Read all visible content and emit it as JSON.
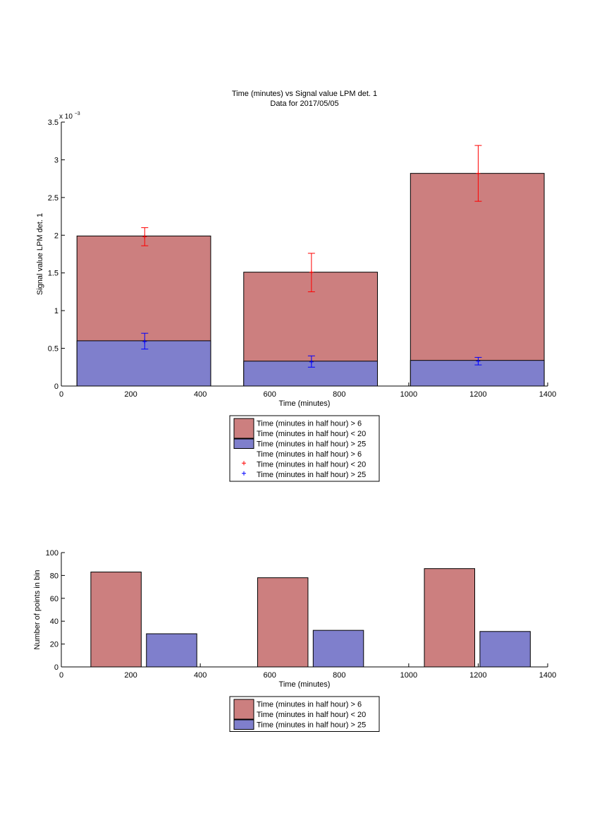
{
  "chart_data": [
    {
      "type": "bar",
      "title": "Time (minutes) vs Signal value LPM det. 1",
      "subtitle": "Data for 2017/05/05",
      "xlabel": "Time (minutes)",
      "ylabel": "Signal value LPM det. 1",
      "exponent_label": "x 10",
      "exponent_power": "−3",
      "xlim": [
        0,
        1400
      ],
      "ylim": [
        0,
        3.5
      ],
      "xticks": [
        0,
        200,
        400,
        600,
        800,
        1000,
        1200,
        1400
      ],
      "xtick_labels": [
        "0",
        "200",
        "400",
        "600",
        "800",
        "1000",
        "1200",
        "1400"
      ],
      "yticks": [
        0,
        0.5,
        1,
        1.5,
        2,
        2.5,
        3,
        3.5
      ],
      "ytick_labels": [
        "0",
        "0.5",
        "1",
        "1.5",
        "2",
        "2.5",
        "3",
        "3.5"
      ],
      "bar_ranges": [
        [
          45,
          430
        ],
        [
          525,
          910
        ],
        [
          1005,
          1390
        ]
      ],
      "series": [
        {
          "name": "Time (minutes in half hour) > 6 Time (minutes in half hour) < 20",
          "kind": "bar",
          "color": "#cc7f7f",
          "values": [
            1.99,
            1.51,
            2.82
          ]
        },
        {
          "name": "Time (minutes in half hour) > 25",
          "kind": "bar",
          "color": "#7f7fcc",
          "values": [
            0.6,
            0.33,
            0.34
          ]
        },
        {
          "name": "Time (minutes in half hour) > 6 Time (minutes in half hour) < 20",
          "kind": "errorbar",
          "color": "#ff0000",
          "x": [
            240,
            720,
            1200
          ],
          "y": [
            1.98,
            1.51,
            2.82
          ],
          "low": [
            1.86,
            1.25,
            2.45
          ],
          "high": [
            2.1,
            1.76,
            3.19
          ]
        },
        {
          "name": "Time (minutes in half hour) > 25",
          "kind": "errorbar",
          "color": "#0000ff",
          "x": [
            240,
            720,
            1200
          ],
          "y": [
            0.59,
            0.32,
            0.33
          ],
          "low": [
            0.49,
            0.25,
            0.28
          ],
          "high": [
            0.7,
            0.4,
            0.38
          ]
        }
      ],
      "legend": {
        "position": "below",
        "entries": [
          {
            "marker": "patch",
            "color": "#cc7f7f",
            "lines": [
              "Time (minutes in half hour) > 6",
              "Time (minutes in half hour) < 20"
            ]
          },
          {
            "marker": "patch",
            "color": "#7f7fcc",
            "lines": [
              "Time (minutes in half hour) > 25"
            ]
          },
          {
            "marker": "plus",
            "color": "#ff0000",
            "lines": [
              "Time (minutes in half hour) > 6",
              "Time (minutes in half hour) < 20"
            ]
          },
          {
            "marker": "plus",
            "color": "#0000ff",
            "lines": [
              "Time (minutes in half hour) > 25"
            ]
          }
        ]
      }
    },
    {
      "type": "bar",
      "title": "",
      "xlabel": "Time (minutes)",
      "ylabel": "Number of points in bin",
      "xlim": [
        0,
        1400
      ],
      "ylim": [
        0,
        100
      ],
      "xticks": [
        0,
        200,
        400,
        600,
        800,
        1000,
        1200,
        1400
      ],
      "xtick_labels": [
        "0",
        "200",
        "400",
        "600",
        "800",
        "1000",
        "1200",
        "1400"
      ],
      "yticks": [
        0,
        20,
        40,
        60,
        80,
        100
      ],
      "ytick_labels": [
        "0",
        "20",
        "40",
        "60",
        "80",
        "100"
      ],
      "series": [
        {
          "name": "Time (minutes in half hour) > 6 Time (minutes in half hour) < 20",
          "kind": "bar",
          "color": "#cc7f7f",
          "ranges": [
            [
              85,
              230
            ],
            [
              565,
              710
            ],
            [
              1045,
              1190
            ]
          ],
          "values": [
            83,
            78,
            86
          ]
        },
        {
          "name": "Time (minutes in half hour) > 25",
          "kind": "bar",
          "color": "#7f7fcc",
          "ranges": [
            [
              245,
              390
            ],
            [
              725,
              870
            ],
            [
              1205,
              1350
            ]
          ],
          "values": [
            29,
            32,
            31
          ]
        }
      ],
      "legend": {
        "position": "below",
        "entries": [
          {
            "marker": "patch",
            "color": "#cc7f7f",
            "lines": [
              "Time (minutes in half hour) > 6",
              "Time (minutes in half hour) < 20"
            ]
          },
          {
            "marker": "patch",
            "color": "#7f7fcc",
            "lines": [
              "Time (minutes in half hour) > 25"
            ]
          }
        ]
      }
    }
  ]
}
